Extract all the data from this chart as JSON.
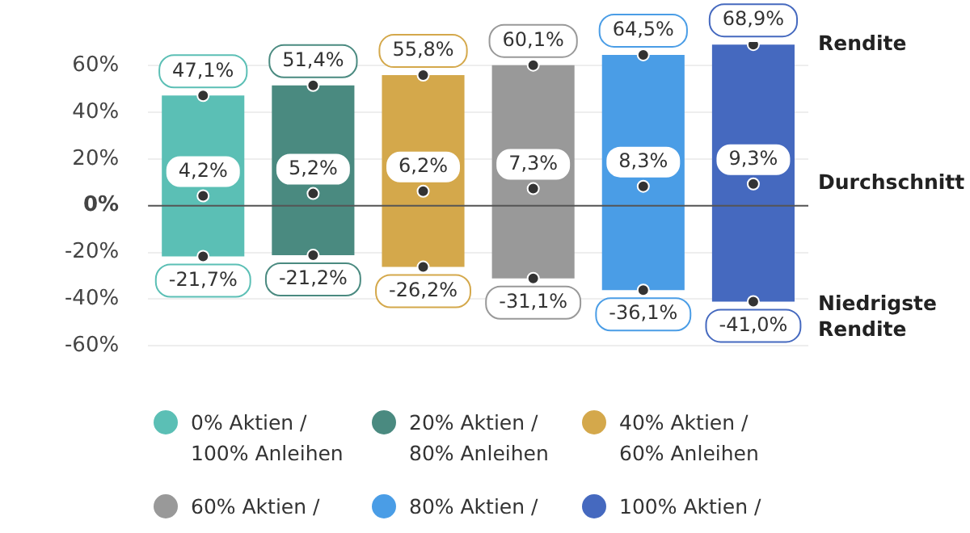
{
  "chart_data": {
    "type": "bar",
    "categories": [
      null,
      null,
      null,
      null,
      null,
      null
    ],
    "series": [
      {
        "name": "0% Aktien / 100% Anleihen",
        "color": "#5bbfb5",
        "base": [
          -21.7,
          null,
          null,
          null,
          null,
          null
        ],
        "values": [
          68.8,
          null,
          null,
          null,
          null,
          null
        ]
      },
      {
        "name": "20% Aktien / 80% Anleihen",
        "color": "#4a8a80",
        "base": [
          null,
          -21.2,
          null,
          null,
          null,
          null
        ],
        "values": [
          null,
          72.6,
          null,
          null,
          null,
          null
        ]
      },
      {
        "name": "40% Aktien / 60% Anleihen",
        "color": "#d4a84b",
        "base": [
          null,
          null,
          -26.2,
          null,
          null,
          null
        ],
        "values": [
          null,
          null,
          82.0,
          null,
          null,
          null
        ]
      },
      {
        "name": "60% Aktien /",
        "color": "#999999",
        "base": [
          null,
          null,
          null,
          -31.1,
          null,
          null
        ],
        "values": [
          null,
          null,
          null,
          91.2,
          null,
          null
        ]
      },
      {
        "name": "80% Aktien /",
        "color": "#4a9de6",
        "base": [
          null,
          null,
          null,
          null,
          -36.1,
          null
        ],
        "values": [
          null,
          null,
          null,
          null,
          100.6,
          null
        ]
      },
      {
        "name": "100% Aktien /",
        "color": "#4569bf",
        "base": [
          null,
          null,
          null,
          null,
          null,
          -41.0
        ],
        "values": [
          null,
          null,
          null,
          null,
          null,
          109.9
        ]
      },
      {
        "type": "scatter",
        "color": "#333333",
        "values": [
          47.1,
          51.4,
          55.8,
          60.1,
          64.5,
          68.9
        ],
        "value_labels": [
          "47,1%",
          "51,4%",
          "55,8%",
          "60,1%",
          "64,5%",
          "68,9%"
        ]
      },
      {
        "type": "scatter",
        "color": "#333333",
        "values": [
          4.2,
          5.2,
          6.2,
          7.3,
          8.3,
          9.3
        ],
        "value_labels": [
          "4,2%",
          "5,2%",
          "6,2%",
          "7,3%",
          "8,3%",
          "9,3%"
        ]
      },
      {
        "type": "scatter",
        "color": "#333333",
        "values": [
          -21.7,
          -21.2,
          -26.2,
          -31.1,
          -36.1,
          -41.0
        ],
        "value_labels": [
          "-21,7%",
          "-21,2%",
          "-26,2%",
          "-31,1%",
          "-36,1%",
          "-41,0%"
        ]
      }
    ],
    "ylim": [
      -60,
      70
    ],
    "yticks": [
      {
        "value": -60,
        "label": "-60%"
      },
      {
        "value": -40,
        "label": "-40%"
      },
      {
        "value": -20,
        "label": "-20%"
      },
      {
        "value": 0,
        "label": "0%"
      },
      {
        "value": 20,
        "label": "20%"
      },
      {
        "value": 40,
        "label": "40%"
      },
      {
        "value": 60,
        "label": "60%"
      }
    ],
    "grid": "y",
    "marker": "circle",
    "legend": "bottom",
    "annotations": [
      "Rendite",
      "Durchschnitt",
      "Niedrigste Rendite"
    ]
  }
}
